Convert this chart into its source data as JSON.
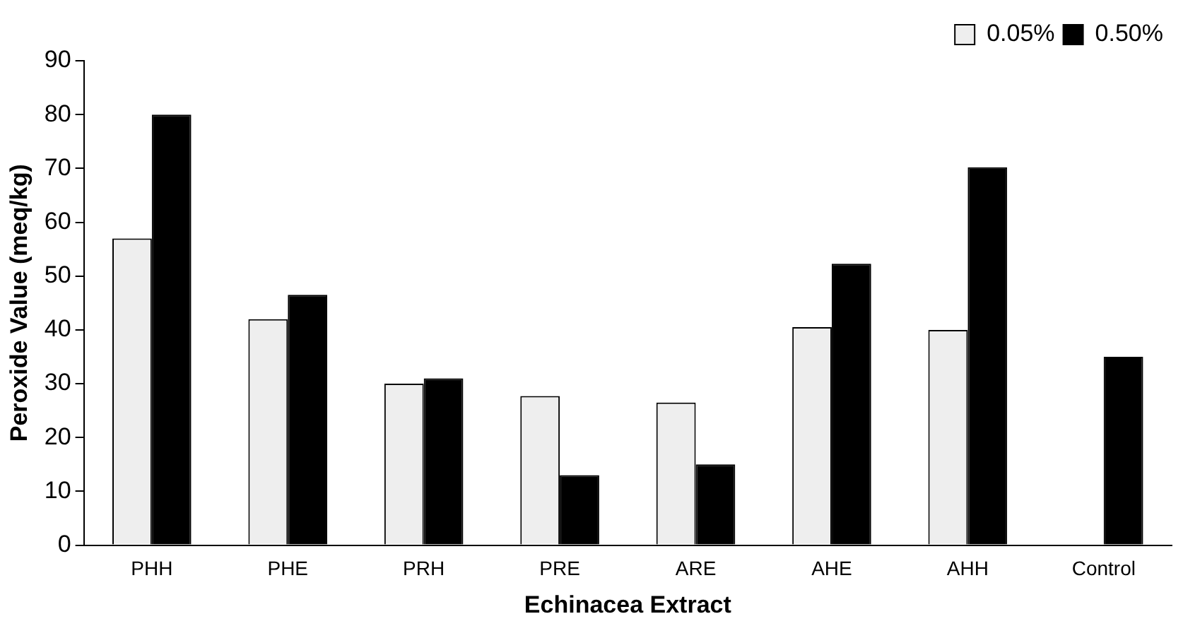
{
  "chart_data": {
    "type": "bar",
    "xlabel": "Echinacea Extract",
    "ylabel": "Peroxide Value (meq/kg)",
    "categories": [
      "PHH",
      "PHE",
      "PRH",
      "PRE",
      "ARE",
      "AHE",
      "AHH",
      "Control"
    ],
    "series": [
      {
        "name": "0.05%",
        "color": "#eeeeee",
        "values": [
          57,
          42,
          30,
          27.7,
          26.5,
          40.5,
          40,
          null
        ]
      },
      {
        "name": "0.50%",
        "color": "#000000",
        "values": [
          80,
          46.5,
          31,
          13,
          15,
          52.3,
          70.2,
          35
        ]
      }
    ],
    "ylim": [
      0,
      90
    ],
    "yticks": [
      0,
      10,
      20,
      30,
      40,
      50,
      60,
      70,
      80,
      90
    ],
    "grid": false,
    "legend": "top right"
  }
}
